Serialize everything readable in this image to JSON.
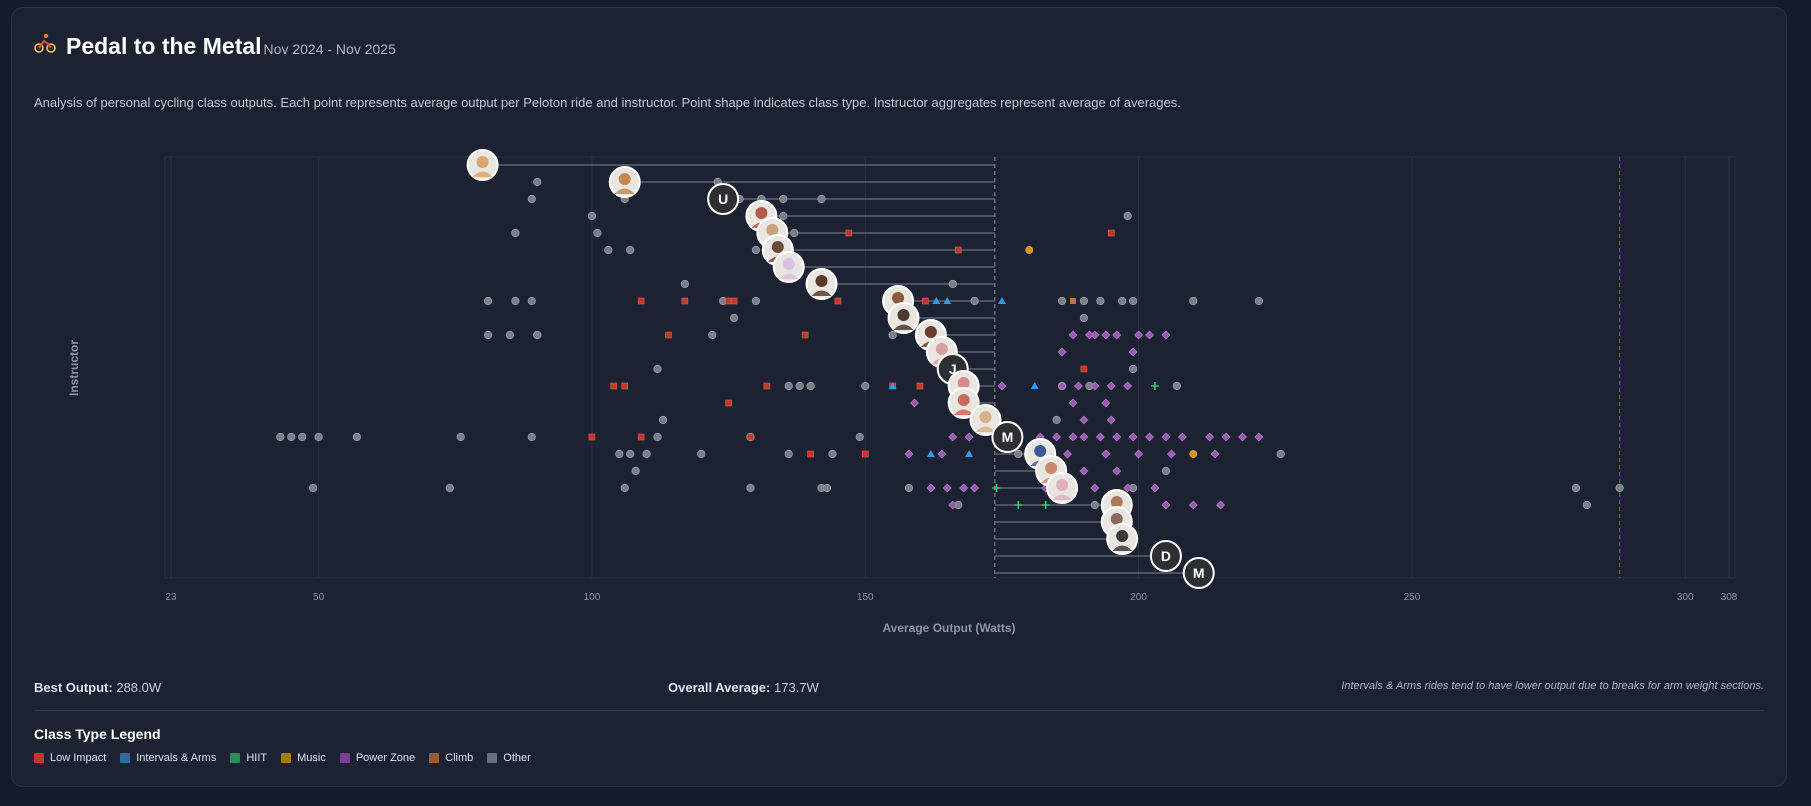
{
  "header": {
    "title": "Pedal to the Metal",
    "date_range": "Nov 2024 - Nov 2025",
    "description": "Analysis of personal cycling class outputs. Each point represents average output per Peloton ride and instructor. Point shape indicates class type. Instructor aggregates represent average of averages."
  },
  "footer": {
    "best_label": "Best Output:",
    "best_value": "288.0W",
    "avg_label": "Overall Average:",
    "avg_value": "173.7W",
    "note": "Intervals & Arms rides tend to have lower output due to breaks for arm weight sections."
  },
  "legend": {
    "title": "Class Type Legend",
    "items": [
      {
        "label": "Low Impact",
        "color": "#c0392b"
      },
      {
        "label": "Intervals & Arms",
        "color": "#2e6da4"
      },
      {
        "label": "HIIT",
        "color": "#2e8b57"
      },
      {
        "label": "Music",
        "color": "#a67c00"
      },
      {
        "label": "Power Zone",
        "color": "#7d3c98"
      },
      {
        "label": "Climb",
        "color": "#9c5b2e"
      },
      {
        "label": "Other",
        "color": "#6b6f7a"
      }
    ]
  },
  "chart_data": {
    "type": "scatter",
    "xlabel": "Average Output (Watts)",
    "ylabel": "Instructor",
    "xlim": [
      23,
      308
    ],
    "x_ticks": [
      23,
      50,
      100,
      150,
      200,
      250,
      300,
      308
    ],
    "overall_average": 173.7,
    "best_output": 288.0,
    "instructors": [
      {
        "label": "",
        "initial": "",
        "avg": 80,
        "color": "#d9a66b"
      },
      {
        "label": "",
        "initial": "",
        "avg": 106,
        "color": "#c9874f"
      },
      {
        "label": "",
        "initial": "U",
        "avg": 124,
        "color": ""
      },
      {
        "label": "",
        "initial": "",
        "avg": 131,
        "color": "#b35a4a"
      },
      {
        "label": "",
        "initial": "",
        "avg": 133,
        "color": "#c4a27a"
      },
      {
        "label": "",
        "initial": "",
        "avg": 134,
        "color": "#6b4a3a"
      },
      {
        "label": "",
        "initial": "",
        "avg": 136,
        "color": "#d8c2e0"
      },
      {
        "label": "",
        "initial": "",
        "avg": 142,
        "color": "#5a3a2a"
      },
      {
        "label": "",
        "initial": "",
        "avg": 156,
        "color": "#8a5a3a"
      },
      {
        "label": "",
        "initial": "",
        "avg": 157,
        "color": "#4a3a30"
      },
      {
        "label": "",
        "initial": "",
        "avg": 162,
        "color": "#6a3a2a"
      },
      {
        "label": "",
        "initial": "",
        "avg": 164,
        "color": "#d7a0a0"
      },
      {
        "label": "",
        "initial": "J",
        "avg": 166,
        "color": ""
      },
      {
        "label": "",
        "initial": "",
        "avg": 168,
        "color": "#d98a8a"
      },
      {
        "label": "",
        "initial": "",
        "avg": 168,
        "color": "#c96a5a"
      },
      {
        "label": "",
        "initial": "",
        "avg": 172,
        "color": "#d7b08a"
      },
      {
        "label": "",
        "initial": "M",
        "avg": 176,
        "color": ""
      },
      {
        "label": "",
        "initial": "",
        "avg": 182,
        "color": "#3a5a9a"
      },
      {
        "label": "",
        "initial": "",
        "avg": 184,
        "color": "#c98a6a"
      },
      {
        "label": "",
        "initial": "",
        "avg": 186,
        "color": "#e0b0c0"
      },
      {
        "label": "",
        "initial": "",
        "avg": 196,
        "color": "#b07a5a"
      },
      {
        "label": "",
        "initial": "",
        "avg": 196,
        "color": "#8a6a5a"
      },
      {
        "label": "",
        "initial": "",
        "avg": 197,
        "color": "#3a3a3a"
      },
      {
        "label": "",
        "initial": "D",
        "avg": 205,
        "color": ""
      },
      {
        "label": "",
        "initial": "M",
        "avg": 211,
        "color": ""
      }
    ],
    "points": [
      [
        90,
        1,
        "Other"
      ],
      [
        89,
        2,
        "Other"
      ],
      [
        123,
        1,
        "Other"
      ],
      [
        106,
        2,
        "Other"
      ],
      [
        86,
        4,
        "Other"
      ],
      [
        100,
        3,
        "Other"
      ],
      [
        101,
        4,
        "Other"
      ],
      [
        103,
        5,
        "Other"
      ],
      [
        107,
        5,
        "Other"
      ],
      [
        127,
        2,
        "Other"
      ],
      [
        131,
        2,
        "Other"
      ],
      [
        135,
        2,
        "Other"
      ],
      [
        142,
        2,
        "Other"
      ],
      [
        130,
        3,
        "Other"
      ],
      [
        135,
        3,
        "Other"
      ],
      [
        130,
        5,
        "Other"
      ],
      [
        132,
        5,
        "Other"
      ],
      [
        137,
        4,
        "Other"
      ],
      [
        198,
        3,
        "Other"
      ],
      [
        147,
        4,
        "Low Impact"
      ],
      [
        195,
        4,
        "Low Impact"
      ],
      [
        167,
        5,
        "Low Impact"
      ],
      [
        180,
        5,
        "Music"
      ],
      [
        81,
        8,
        "Other"
      ],
      [
        86,
        8,
        "Other"
      ],
      [
        89,
        8,
        "Other"
      ],
      [
        81,
        10,
        "Other"
      ],
      [
        85,
        10,
        "Other"
      ],
      [
        90,
        10,
        "Other"
      ],
      [
        90,
        10,
        "Other"
      ],
      [
        117,
        7,
        "Other"
      ],
      [
        124,
        8,
        "Other"
      ],
      [
        130,
        8,
        "Other"
      ],
      [
        126,
        9,
        "Other"
      ],
      [
        122,
        10,
        "Other"
      ],
      [
        166,
        7,
        "Other"
      ],
      [
        170,
        8,
        "Other"
      ],
      [
        155,
        10,
        "Other"
      ],
      [
        186,
        8,
        "Other"
      ],
      [
        190,
        8,
        "Other"
      ],
      [
        193,
        8,
        "Other"
      ],
      [
        197,
        8,
        "Other"
      ],
      [
        199,
        8,
        "Other"
      ],
      [
        210,
        8,
        "Other"
      ],
      [
        222,
        8,
        "Other"
      ],
      [
        190,
        9,
        "Other"
      ],
      [
        109,
        8,
        "Low Impact"
      ],
      [
        117,
        8,
        "Low Impact"
      ],
      [
        125,
        8,
        "Low Impact"
      ],
      [
        126,
        8,
        "Low Impact"
      ],
      [
        145,
        8,
        "Low Impact"
      ],
      [
        161,
        8,
        "Low Impact"
      ],
      [
        114,
        10,
        "Low Impact"
      ],
      [
        139,
        10,
        "Low Impact"
      ],
      [
        188,
        8,
        "Climb"
      ],
      [
        163,
        8,
        "Intervals & Arms"
      ],
      [
        165,
        8,
        "Intervals & Arms"
      ],
      [
        175,
        8,
        "Intervals & Arms"
      ],
      [
        188,
        10,
        "Power Zone"
      ],
      [
        192,
        10,
        "Power Zone"
      ],
      [
        194,
        10,
        "Power Zone"
      ],
      [
        196,
        10,
        "Power Zone"
      ],
      [
        200,
        10,
        "Power Zone"
      ],
      [
        202,
        10,
        "Power Zone"
      ],
      [
        205,
        10,
        "Power Zone"
      ],
      [
        191,
        10,
        "Power Zone"
      ],
      [
        186,
        11,
        "Power Zone"
      ],
      [
        199,
        11,
        "Power Zone"
      ],
      [
        112,
        12,
        "Other"
      ],
      [
        136,
        13,
        "Other"
      ],
      [
        138,
        13,
        "Other"
      ],
      [
        140,
        13,
        "Other"
      ],
      [
        150,
        13,
        "Other"
      ],
      [
        169,
        13,
        "Other"
      ],
      [
        186,
        13,
        "Other"
      ],
      [
        191,
        13,
        "Other"
      ],
      [
        199,
        12,
        "Other"
      ],
      [
        207,
        13,
        "Other"
      ],
      [
        104,
        13,
        "Low Impact"
      ],
      [
        106,
        13,
        "Low Impact"
      ],
      [
        125,
        14,
        "Low Impact"
      ],
      [
        132,
        13,
        "Low Impact"
      ],
      [
        155,
        13,
        "Low Impact"
      ],
      [
        160,
        13,
        "Low Impact"
      ],
      [
        190,
        12,
        "Low Impact"
      ],
      [
        155,
        13,
        "Intervals & Arms"
      ],
      [
        181,
        13,
        "Intervals & Arms"
      ],
      [
        203,
        13,
        "HIIT"
      ],
      [
        159,
        14,
        "Power Zone"
      ],
      [
        175,
        13,
        "Power Zone"
      ],
      [
        186,
        13,
        "Power Zone"
      ],
      [
        189,
        13,
        "Power Zone"
      ],
      [
        192,
        13,
        "Power Zone"
      ],
      [
        195,
        13,
        "Power Zone"
      ],
      [
        198,
        13,
        "Power Zone"
      ],
      [
        188,
        14,
        "Power Zone"
      ],
      [
        194,
        14,
        "Power Zone"
      ],
      [
        43,
        16,
        "Other"
      ],
      [
        45,
        16,
        "Other"
      ],
      [
        47,
        16,
        "Other"
      ],
      [
        50,
        16,
        "Other"
      ],
      [
        57,
        16,
        "Other"
      ],
      [
        76,
        16,
        "Other"
      ],
      [
        89,
        16,
        "Other"
      ],
      [
        112,
        16,
        "Other"
      ],
      [
        113,
        15,
        "Other"
      ],
      [
        129,
        16,
        "Other"
      ],
      [
        149,
        16,
        "Other"
      ],
      [
        185,
        15,
        "Other"
      ],
      [
        105,
        17,
        "Other"
      ],
      [
        107,
        17,
        "Other"
      ],
      [
        110,
        17,
        "Other"
      ],
      [
        120,
        17,
        "Other"
      ],
      [
        136,
        17,
        "Other"
      ],
      [
        144,
        17,
        "Other"
      ],
      [
        178,
        17,
        "Other"
      ],
      [
        226,
        17,
        "Other"
      ],
      [
        100,
        16,
        "Low Impact"
      ],
      [
        109,
        16,
        "Low Impact"
      ],
      [
        129,
        16,
        "Low Impact"
      ],
      [
        140,
        17,
        "Low Impact"
      ],
      [
        150,
        17,
        "Low Impact"
      ],
      [
        162,
        17,
        "Intervals & Arms"
      ],
      [
        169,
        17,
        "Intervals & Arms"
      ],
      [
        158,
        17,
        "Power Zone"
      ],
      [
        164,
        17,
        "Power Zone"
      ],
      [
        166,
        16,
        "Power Zone"
      ],
      [
        169,
        16,
        "Power Zone"
      ],
      [
        182,
        16,
        "Power Zone"
      ],
      [
        185,
        16,
        "Power Zone"
      ],
      [
        188,
        16,
        "Power Zone"
      ],
      [
        190,
        16,
        "Power Zone"
      ],
      [
        193,
        16,
        "Power Zone"
      ],
      [
        196,
        16,
        "Power Zone"
      ],
      [
        199,
        16,
        "Power Zone"
      ],
      [
        202,
        16,
        "Power Zone"
      ],
      [
        205,
        16,
        "Power Zone"
      ],
      [
        208,
        16,
        "Power Zone"
      ],
      [
        213,
        16,
        "Power Zone"
      ],
      [
        216,
        16,
        "Power Zone"
      ],
      [
        219,
        16,
        "Power Zone"
      ],
      [
        222,
        16,
        "Power Zone"
      ],
      [
        187,
        17,
        "Power Zone"
      ],
      [
        194,
        17,
        "Power Zone"
      ],
      [
        200,
        17,
        "Power Zone"
      ],
      [
        206,
        17,
        "Power Zone"
      ],
      [
        214,
        17,
        "Power Zone"
      ],
      [
        195,
        15,
        "Power Zone"
      ],
      [
        190,
        15,
        "Power Zone"
      ],
      [
        210,
        17,
        "Music"
      ],
      [
        49,
        19,
        "Other"
      ],
      [
        74,
        19,
        "Other"
      ],
      [
        106,
        19,
        "Other"
      ],
      [
        108,
        18,
        "Other"
      ],
      [
        129,
        19,
        "Other"
      ],
      [
        142,
        19,
        "Other"
      ],
      [
        143,
        19,
        "Other"
      ],
      [
        158,
        19,
        "Other"
      ],
      [
        199,
        19,
        "Other"
      ],
      [
        205,
        18,
        "Other"
      ],
      [
        280,
        19,
        "Other"
      ],
      [
        282,
        20,
        "Other"
      ],
      [
        288,
        19,
        "Other"
      ],
      [
        167,
        20,
        "Other"
      ],
      [
        192,
        20,
        "Other"
      ],
      [
        162,
        19,
        "Power Zone"
      ],
      [
        165,
        19,
        "Power Zone"
      ],
      [
        168,
        19,
        "Power Zone"
      ],
      [
        170,
        19,
        "Power Zone"
      ],
      [
        183,
        19,
        "Power Zone"
      ],
      [
        188,
        19,
        "Power Zone"
      ],
      [
        192,
        19,
        "Power Zone"
      ],
      [
        198,
        19,
        "Power Zone"
      ],
      [
        203,
        19,
        "Power Zone"
      ],
      [
        196,
        18,
        "Power Zone"
      ],
      [
        190,
        18,
        "Power Zone"
      ],
      [
        166,
        20,
        "Power Zone"
      ],
      [
        198,
        20,
        "Power Zone"
      ],
      [
        205,
        20,
        "Power Zone"
      ],
      [
        210,
        20,
        "Power Zone"
      ],
      [
        215,
        20,
        "Power Zone"
      ],
      [
        174,
        19,
        "HIIT"
      ],
      [
        178,
        20,
        "HIIT"
      ],
      [
        183,
        20,
        "HIIT"
      ]
    ]
  }
}
